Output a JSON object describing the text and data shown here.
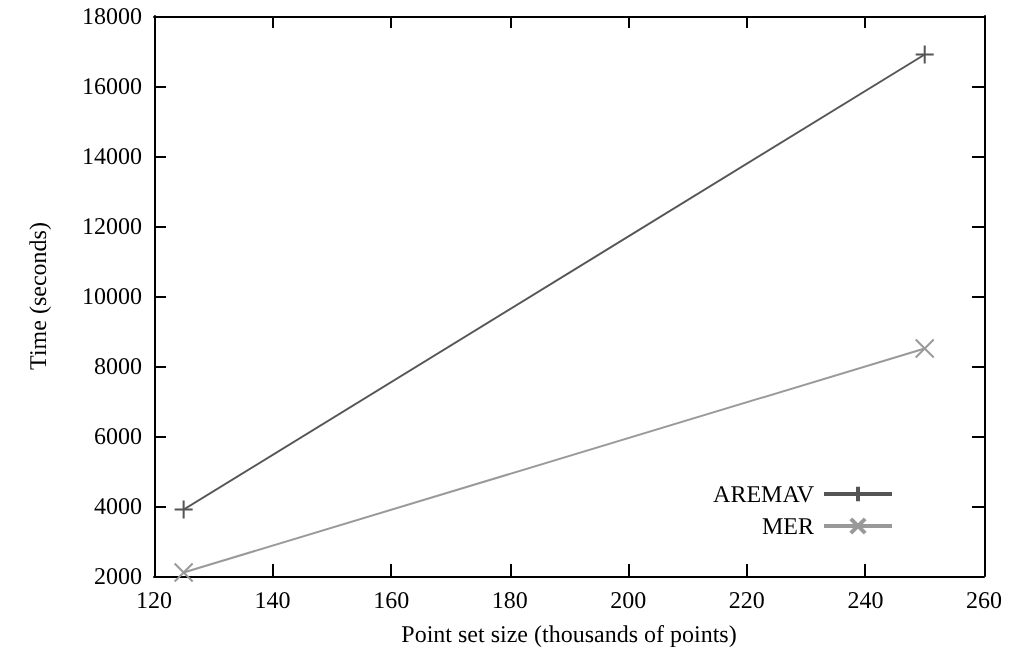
{
  "chart_data": {
    "type": "line",
    "xlabel": "Point set size (thousands of points)",
    "ylabel": "Time (seconds)",
    "x": [
      125,
      250
    ],
    "series": [
      {
        "name": "AREMAV",
        "color": "#555555",
        "values": [
          3900,
          16900
        ],
        "marker": "cross"
      },
      {
        "name": "MER",
        "color": "#999999",
        "values": [
          2100,
          8500
        ],
        "marker": "x"
      }
    ],
    "xlim": [
      120,
      260
    ],
    "xticks": [
      120,
      140,
      160,
      180,
      200,
      220,
      240,
      260
    ],
    "ylim": [
      2000,
      18000
    ],
    "yticks": [
      2000,
      4000,
      6000,
      8000,
      10000,
      12000,
      14000,
      16000,
      18000
    ],
    "grid": false,
    "legend": "bottom right",
    "line_style": "solid"
  }
}
